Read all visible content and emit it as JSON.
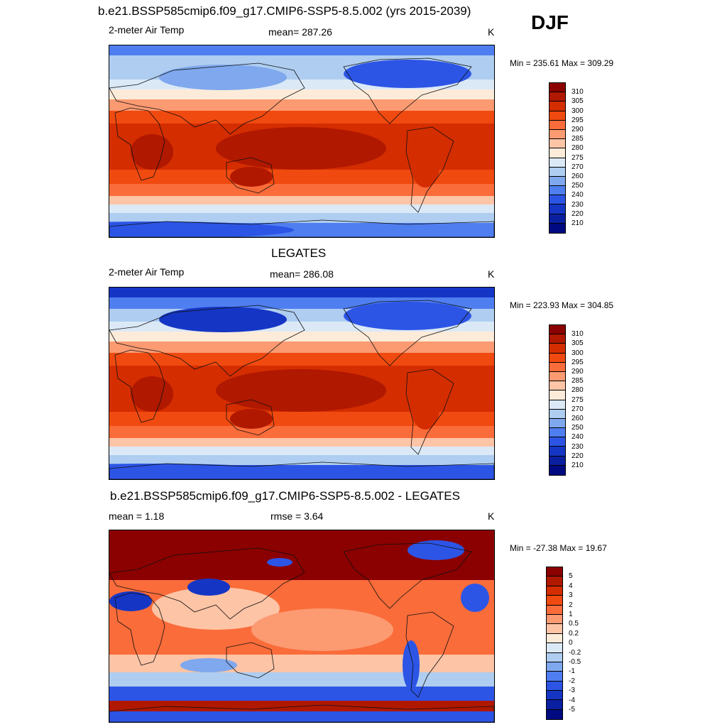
{
  "header": {
    "title": "b.e21.BSSP585cmip6.f09_g17.CMIP6-SSP5-8.5.002 (yrs 2015-2039)",
    "season": "DJF"
  },
  "panels": [
    {
      "id": "model",
      "variable": "2-meter Air Temp",
      "stat_label": "mean= 287.26",
      "units": "K",
      "minmax": "Min = 235.61 Max = 309.29"
    },
    {
      "id": "obs",
      "title": "LEGATES",
      "variable": "2-meter Air Temp",
      "stat_label": "mean= 286.08",
      "units": "K",
      "minmax": "Min = 223.93 Max = 304.85"
    },
    {
      "id": "diff",
      "title": "b.e21.BSSP585cmip6.f09_g17.CMIP6-SSP5-8.5.002 - LEGATES",
      "stat_label": "mean =   1.18",
      "stat_label2": "rmse =   3.64",
      "units": "K",
      "minmax": "Min = -27.38 Max =  19.67"
    }
  ],
  "colorbars": {
    "temperature": {
      "labels": [
        "310",
        "305",
        "300",
        "295",
        "290",
        "285",
        "280",
        "275",
        "270",
        "260",
        "250",
        "240",
        "230",
        "220",
        "210"
      ],
      "colors": [
        "#8b0000",
        "#b01800",
        "#d42d00",
        "#f04a10",
        "#fa6c3a",
        "#fc9a72",
        "#fdc4a6",
        "#fdebd9",
        "#dbe9f7",
        "#aecdf0",
        "#7fa8ee",
        "#4f7ef0",
        "#2c55e6",
        "#1536c5",
        "#0a1fa0",
        "#000a80"
      ]
    },
    "difference": {
      "labels": [
        "5",
        "4",
        "3",
        "2",
        "1",
        "0.5",
        "0.2",
        "0",
        "-0.2",
        "-0.5",
        "-1",
        "-2",
        "-3",
        "-4",
        "-5"
      ],
      "colors": [
        "#8b0000",
        "#b01800",
        "#d42d00",
        "#f04a10",
        "#fa6c3a",
        "#fc9a72",
        "#fdc4a6",
        "#fdebd9",
        "#dbe9f7",
        "#aecdf0",
        "#7fa8ee",
        "#4f7ef0",
        "#2c55e6",
        "#1536c5",
        "#0a1fa0",
        "#000a80"
      ]
    }
  },
  "chart_data": [
    {
      "type": "heatmap",
      "title": "b.e21.BSSP585cmip6.f09_g17.CMIP6-SSP5-8.5.002 (yrs 2015-2039)",
      "subtitle": "2-meter Air Temp",
      "units": "K",
      "mean": 287.26,
      "min": 235.61,
      "max": 309.29,
      "contour_levels": [
        210,
        220,
        230,
        240,
        250,
        260,
        270,
        275,
        280,
        285,
        290,
        295,
        300,
        305,
        310
      ]
    },
    {
      "type": "heatmap",
      "title": "LEGATES",
      "subtitle": "2-meter Air Temp",
      "units": "K",
      "mean": 286.08,
      "min": 223.93,
      "max": 304.85,
      "contour_levels": [
        210,
        220,
        230,
        240,
        250,
        260,
        270,
        275,
        280,
        285,
        290,
        295,
        300,
        305,
        310
      ]
    },
    {
      "type": "heatmap",
      "title": "b.e21.BSSP585cmip6.f09_g17.CMIP6-SSP5-8.5.002 - LEGATES",
      "units": "K",
      "mean": 1.18,
      "rmse": 3.64,
      "min": -27.38,
      "max": 19.67,
      "contour_levels": [
        -5,
        -4,
        -3,
        -2,
        -1,
        -0.5,
        -0.2,
        0,
        0.2,
        0.5,
        1,
        2,
        3,
        4,
        5
      ]
    }
  ]
}
